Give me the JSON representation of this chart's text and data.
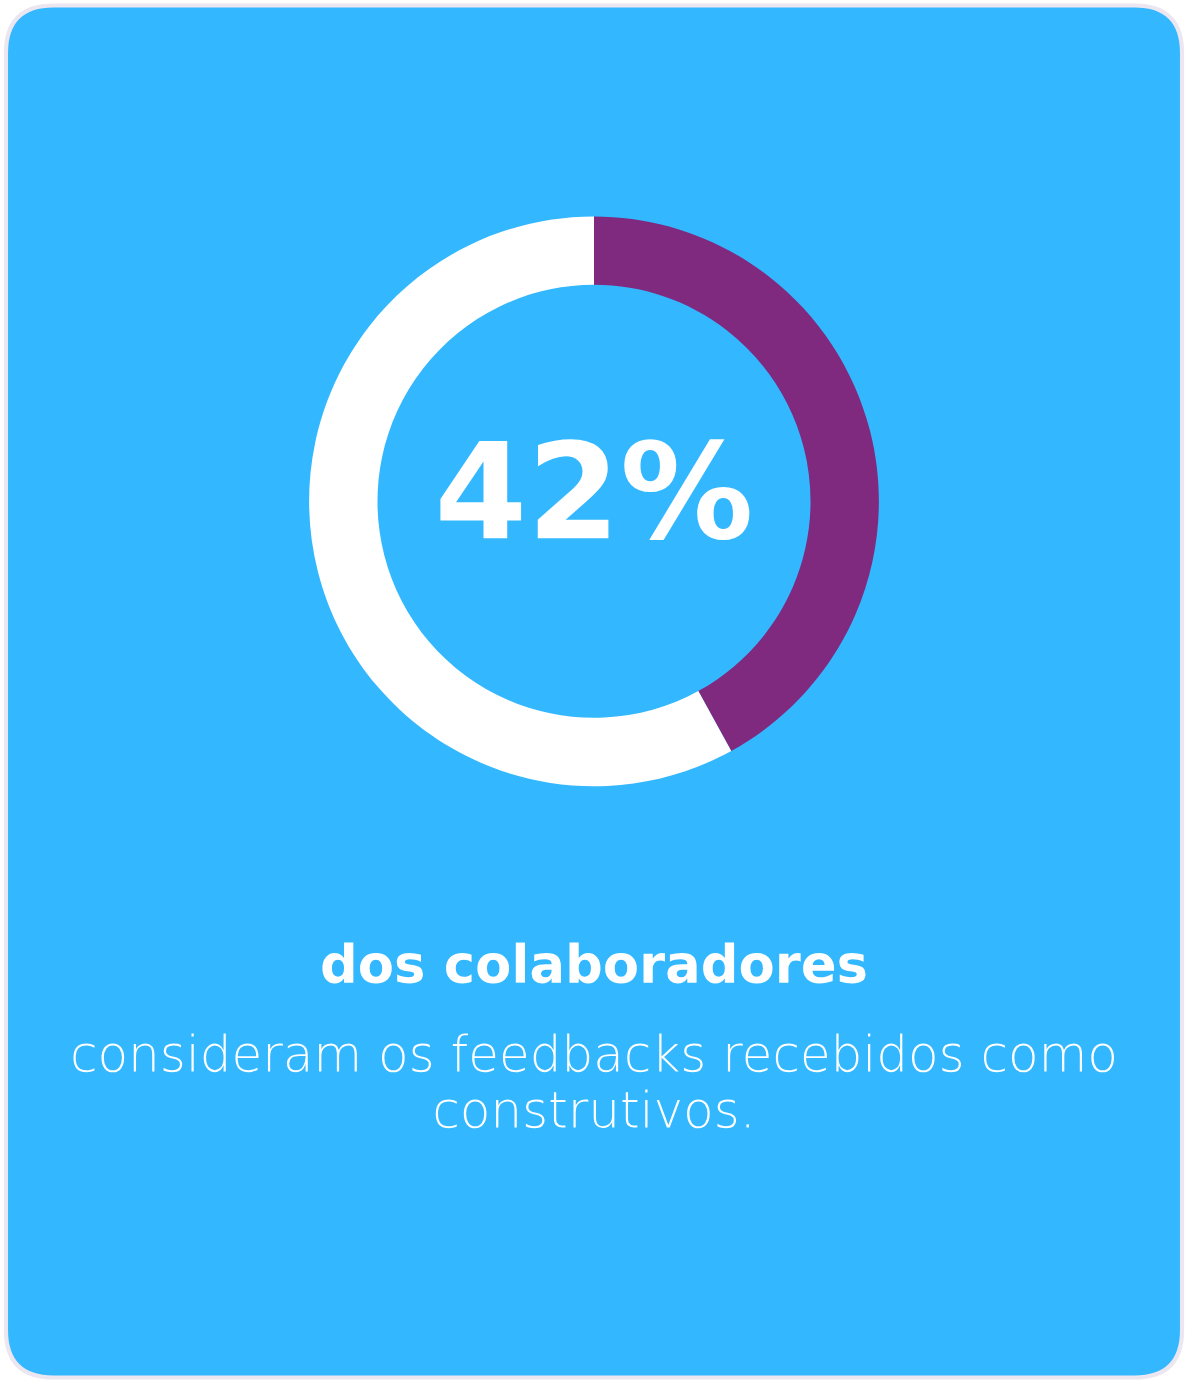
{
  "chart_data": {
    "type": "donut",
    "categories": [
      null,
      null
    ],
    "values": [
      42,
      58
    ],
    "colors": [
      "#7f2a7f",
      "#ffffff"
    ],
    "value_labels": [
      "42%",
      null
    ],
    "annotations": [
      "dos colaboradores",
      "consideram os feedbacks recebidos como construtivos."
    ]
  }
}
